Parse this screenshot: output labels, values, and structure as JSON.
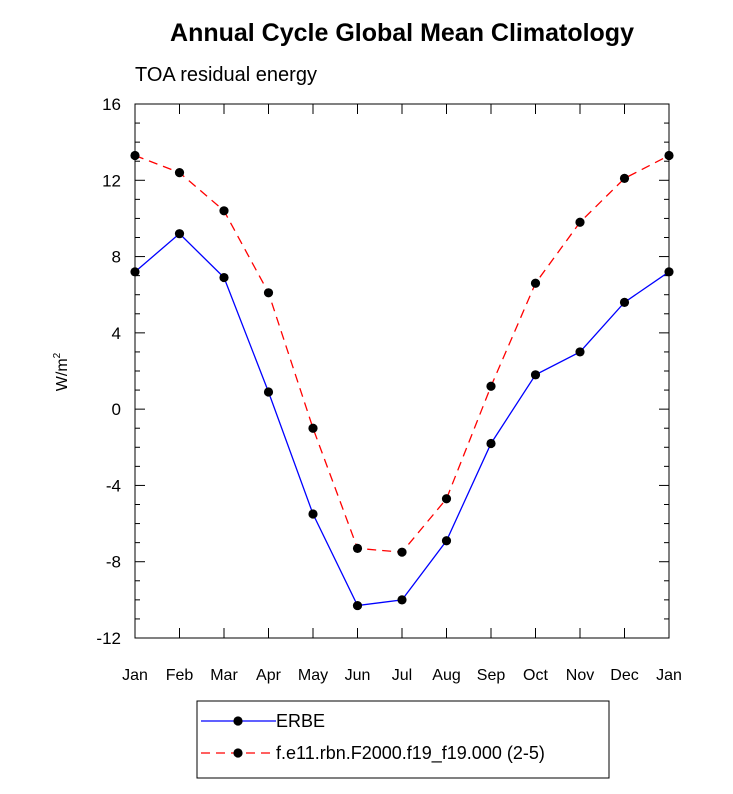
{
  "chart_data": {
    "type": "line",
    "title": "Annual Cycle Global Mean Climatology",
    "subtitle": "TOA residual energy",
    "ylabel": "W/m",
    "ylabel_superscript": "2",
    "xlabel": "",
    "categories": [
      "Jan",
      "Feb",
      "Mar",
      "Apr",
      "May",
      "Jun",
      "Jul",
      "Aug",
      "Sep",
      "Oct",
      "Nov",
      "Dec",
      "Jan"
    ],
    "ylim": [
      -12,
      16
    ],
    "yticks": [
      -12,
      -8,
      -4,
      0,
      4,
      8,
      12,
      16
    ],
    "ytick_labels": [
      "-12",
      "-8",
      "-4",
      "0",
      "4",
      "8",
      "12",
      "16"
    ],
    "grid": false,
    "legend_position": "bottom-center",
    "series": [
      {
        "name": "ERBE",
        "color": "#0000ff",
        "dash": "solid",
        "marker": "filled-circle",
        "values": [
          7.2,
          9.2,
          6.9,
          0.9,
          -5.5,
          -10.3,
          -10.0,
          -6.9,
          -1.8,
          1.8,
          3.0,
          5.6,
          7.2
        ]
      },
      {
        "name": "f.e11.rbn.F2000.f19_f19.000 (2-5)",
        "color": "#ff0000",
        "dash": "dashed",
        "marker": "filled-circle",
        "values": [
          13.3,
          12.4,
          10.4,
          6.1,
          -1.0,
          -7.3,
          -7.5,
          -4.7,
          1.2,
          6.6,
          9.8,
          12.1,
          13.3
        ]
      }
    ]
  }
}
